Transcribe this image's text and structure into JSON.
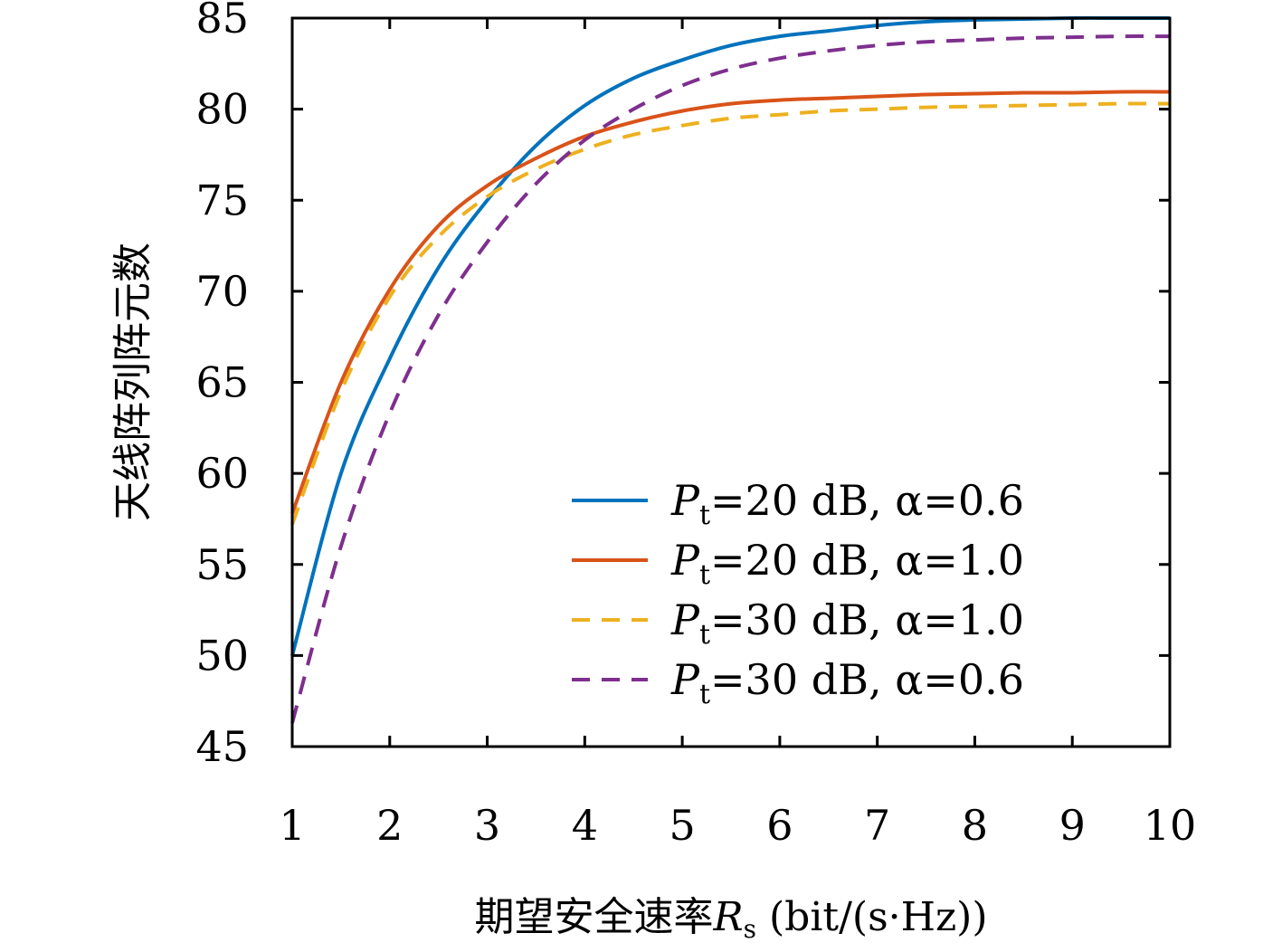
{
  "chart_data": {
    "type": "line",
    "title": "",
    "xlabel": "期望安全速率",
    "xlabel_symbol": "R",
    "xlabel_symbol_sub": "s",
    "xlabel_unit": " (bit/(s·Hz))",
    "ylabel": "天线阵列阵元数",
    "xlim": [
      1,
      10
    ],
    "ylim": [
      45,
      85
    ],
    "xticks": [
      1,
      2,
      3,
      4,
      5,
      6,
      7,
      8,
      9,
      10
    ],
    "yticks": [
      45,
      50,
      55,
      60,
      65,
      70,
      75,
      80,
      85
    ],
    "grid": false,
    "legend_position": "bottom-right",
    "x": [
      1,
      1.5,
      2,
      2.5,
      3,
      3.5,
      4,
      4.5,
      5,
      5.5,
      6,
      6.5,
      7,
      7.5,
      8,
      8.5,
      9,
      9.5,
      10
    ],
    "series": [
      {
        "name": "=20 dB, α=0.6",
        "symbol": "P",
        "symbol_sub": "t",
        "color": "#0072BD",
        "dash": "solid",
        "values": [
          50.0,
          60.0,
          66.3,
          71.3,
          75.0,
          78.0,
          80.2,
          81.7,
          82.7,
          83.5,
          84.0,
          84.3,
          84.6,
          84.8,
          84.9,
          84.95,
          85.0,
          85.0,
          85.0
        ]
      },
      {
        "name": "=20 dB, α=1.0",
        "symbol": "P",
        "symbol_sub": "t",
        "color": "#D95319",
        "dash": "solid",
        "values": [
          57.8,
          65.0,
          70.1,
          73.6,
          75.8,
          77.3,
          78.5,
          79.3,
          79.9,
          80.3,
          80.5,
          80.6,
          80.7,
          80.8,
          80.85,
          80.9,
          80.9,
          80.95,
          80.95
        ]
      },
      {
        "name": "=30 dB, α=1.0",
        "symbol": "P",
        "symbol_sub": "t",
        "color": "#EDB120",
        "dash": "dashed",
        "values": [
          57.2,
          64.5,
          69.7,
          73.0,
          75.2,
          76.7,
          77.8,
          78.6,
          79.1,
          79.5,
          79.7,
          79.9,
          80.0,
          80.1,
          80.15,
          80.2,
          80.25,
          80.3,
          80.3
        ]
      },
      {
        "name": "=30 dB, α=0.6",
        "symbol": "P",
        "symbol_sub": "t",
        "color": "#7E2F8E",
        "dash": "dashed",
        "values": [
          46.3,
          56.0,
          63.3,
          68.7,
          72.7,
          75.9,
          78.3,
          80.0,
          81.3,
          82.2,
          82.8,
          83.2,
          83.5,
          83.7,
          83.8,
          83.9,
          83.95,
          84.0,
          84.0
        ]
      }
    ]
  }
}
